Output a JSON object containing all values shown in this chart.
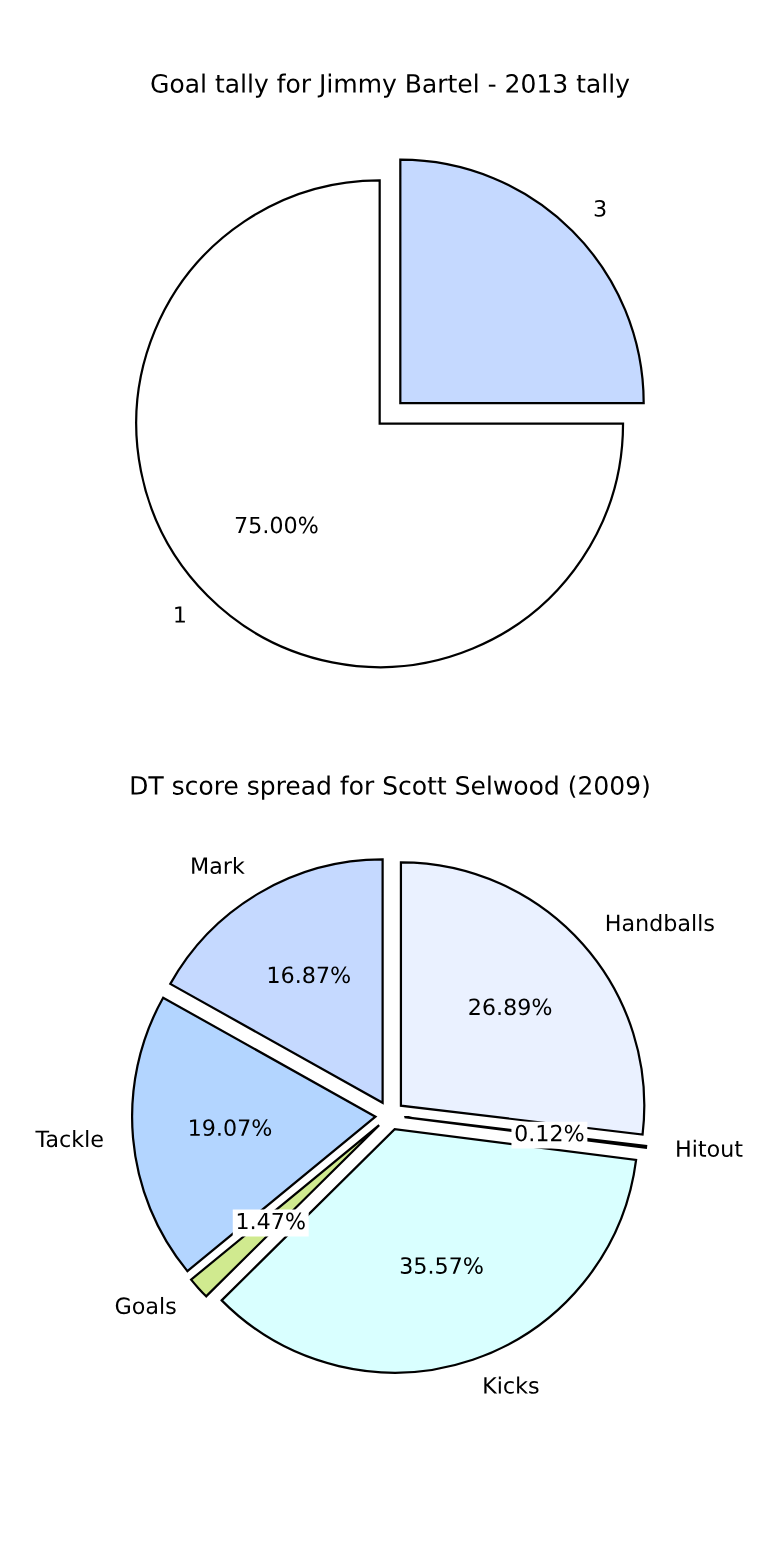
{
  "chart_data": [
    {
      "type": "pie",
      "title": "Goal tally for Jimmy Bartel - 2013 tally",
      "categories": [
        "1",
        "3"
      ],
      "values": [
        75,
        25
      ],
      "colors": [
        "#ffffff",
        "#c5d9ff"
      ],
      "value_labels": [
        "75.00%",
        null
      ]
    },
    {
      "type": "pie",
      "title": "DT score spread for Scott Selwood (2009)",
      "categories": [
        "Mark",
        "Tackle",
        "Goals",
        "Kicks",
        "Hitout",
        "Handballs"
      ],
      "values": [
        16.87,
        19.07,
        1.47,
        35.57,
        0.12,
        26.89
      ],
      "colors": [
        "#c5d9ff",
        "#b3d5ff",
        "#d0ea8f",
        "#d9ffff",
        "#f0f0f0",
        "#eaf1ff"
      ],
      "value_labels": [
        "16.87%",
        "19.07%",
        "1.47%",
        "35.57%",
        "0.12%",
        "26.89%"
      ]
    }
  ]
}
